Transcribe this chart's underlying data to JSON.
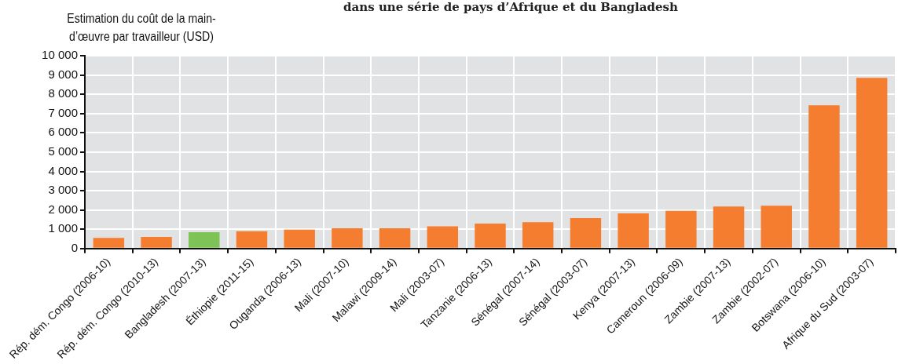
{
  "chart_data": {
    "type": "bar",
    "title": "dans une série de pays d’Afrique et du Bangladesh",
    "ylabel": "Estimation du coût de la main-d’œuvre par travailleur (USD)",
    "categories": [
      "Rép. dém. Congo (2006-10)",
      "Rép. dém. Congo (2010-13)",
      "Bangladesh (2007-13)",
      "Éthiopie (2011-15)",
      "Ouganda (2006-13)",
      "Mali (2007-10)",
      "Malawi (2009-14)",
      "Mali (2003-07)",
      "Tanzanie (2006-13)",
      "Sénégal (2007-14)",
      "Sénégal (2003-07)",
      "Kenya (2007-13)",
      "Cameroun (2006-09)",
      "Zambie (2007-13)",
      "Zambie (2002-07)",
      "Botswana (2006-10)",
      "Afrique du Sud (2003-07)"
    ],
    "values": [
      550,
      600,
      850,
      900,
      980,
      1050,
      1050,
      1150,
      1300,
      1370,
      1580,
      1820,
      1960,
      2180,
      2220,
      7430,
      8850
    ],
    "colors": [
      "#f47d30",
      "#f47d30",
      "#7dc356",
      "#f47d30",
      "#f47d30",
      "#f47d30",
      "#f47d30",
      "#f47d30",
      "#f47d30",
      "#f47d30",
      "#f47d30",
      "#f47d30",
      "#f47d30",
      "#f47d30",
      "#f47d30",
      "#f47d30",
      "#f47d30"
    ],
    "ylim": [
      0,
      10000
    ],
    "yticks": [
      0,
      {
        "value": 1000,
        "label": "1 000"
      },
      {
        "value": 2000,
        "label": "2 000"
      },
      {
        "value": 3000,
        "label": "3 000"
      },
      {
        "value": 4000,
        "label": "4 000"
      },
      {
        "value": 5000,
        "label": "5 000"
      },
      {
        "value": 6000,
        "label": "6 000"
      },
      {
        "value": 7000,
        "label": "7 000"
      },
      {
        "value": 8000,
        "label": "8 000"
      },
      {
        "value": 9000,
        "label": "9 000"
      },
      {
        "value": 10000,
        "label": "10 000"
      }
    ],
    "grid": true
  }
}
